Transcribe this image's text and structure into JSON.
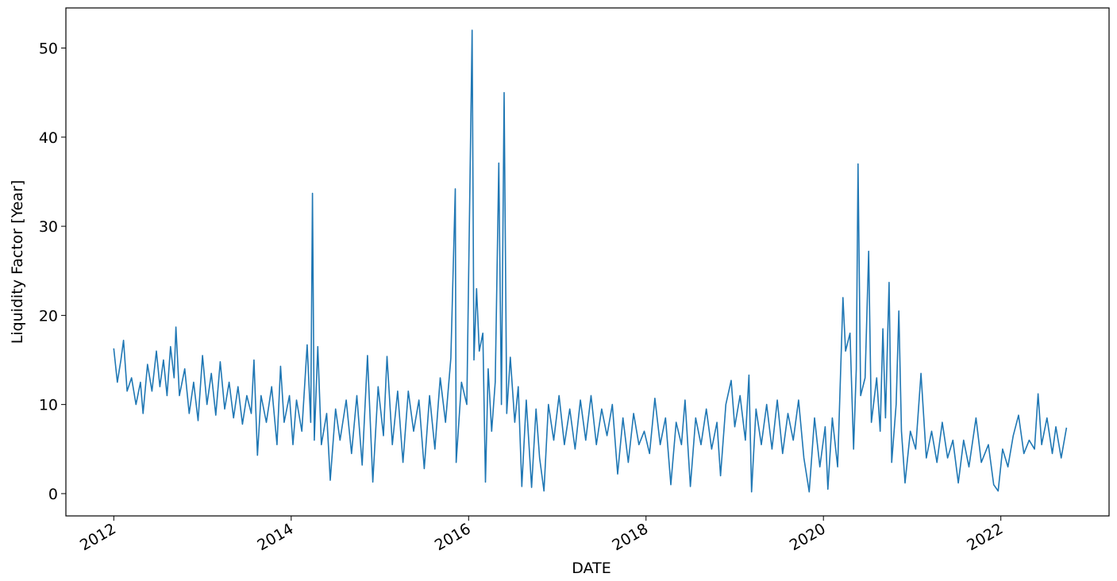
{
  "chart_data": {
    "type": "line",
    "x_label": "DATE",
    "y_label": "Liquidity Factor [Year]",
    "xlim": [
      2011.46,
      2023.22
    ],
    "xticks": [
      2012,
      2014,
      2016,
      2018,
      2020,
      2022
    ],
    "ylim": [
      -2.5,
      54.5
    ],
    "yticks": [
      0,
      10,
      20,
      30,
      40,
      50
    ],
    "grid": false,
    "series": [
      {
        "color": "#1f77b4",
        "x": [
          2012.0,
          2012.04,
          2012.08,
          2012.11,
          2012.15,
          2012.2,
          2012.25,
          2012.3,
          2012.33,
          2012.38,
          2012.43,
          2012.48,
          2012.52,
          2012.56,
          2012.6,
          2012.64,
          2012.68,
          2012.7,
          2012.74,
          2012.8,
          2012.85,
          2012.9,
          2012.95,
          2013.0,
          2013.05,
          2013.1,
          2013.15,
          2013.2,
          2013.25,
          2013.3,
          2013.35,
          2013.4,
          2013.45,
          2013.5,
          2013.55,
          2013.58,
          2013.62,
          2013.66,
          2013.72,
          2013.78,
          2013.84,
          2013.88,
          2013.92,
          2013.98,
          2014.02,
          2014.06,
          2014.12,
          2014.18,
          2014.22,
          2014.24,
          2014.26,
          2014.3,
          2014.34,
          2014.4,
          2014.44,
          2014.5,
          2014.55,
          2014.62,
          2014.68,
          2014.74,
          2014.8,
          2014.86,
          2014.92,
          2014.98,
          2015.04,
          2015.08,
          2015.14,
          2015.2,
          2015.26,
          2015.32,
          2015.38,
          2015.44,
          2015.5,
          2015.56,
          2015.62,
          2015.68,
          2015.74,
          2015.8,
          2015.85,
          2015.86,
          2015.92,
          2015.98,
          2016.04,
          2016.06,
          2016.09,
          2016.12,
          2016.16,
          2016.19,
          2016.22,
          2016.26,
          2016.3,
          2016.34,
          2016.37,
          2016.4,
          2016.43,
          2016.47,
          2016.52,
          2016.56,
          2016.6,
          2016.65,
          2016.71,
          2016.76,
          2016.8,
          2016.85,
          2016.9,
          2016.96,
          2017.02,
          2017.08,
          2017.14,
          2017.2,
          2017.26,
          2017.32,
          2017.38,
          2017.44,
          2017.5,
          2017.56,
          2017.62,
          2017.68,
          2017.74,
          2017.8,
          2017.86,
          2017.92,
          2017.98,
          2018.04,
          2018.1,
          2018.16,
          2018.22,
          2018.28,
          2018.34,
          2018.4,
          2018.44,
          2018.5,
          2018.56,
          2018.62,
          2018.68,
          2018.74,
          2018.8,
          2018.84,
          2018.9,
          2018.96,
          2019.0,
          2019.06,
          2019.12,
          2019.16,
          2019.19,
          2019.24,
          2019.3,
          2019.36,
          2019.42,
          2019.48,
          2019.54,
          2019.6,
          2019.66,
          2019.72,
          2019.78,
          2019.84,
          2019.9,
          2019.96,
          2020.02,
          2020.05,
          2020.1,
          2020.16,
          2020.22,
          2020.25,
          2020.3,
          2020.34,
          2020.37,
          2020.39,
          2020.42,
          2020.47,
          2020.51,
          2020.54,
          2020.6,
          2020.64,
          2020.67,
          2020.7,
          2020.74,
          2020.77,
          2020.82,
          2020.85,
          2020.88,
          2020.92,
          2020.98,
          2021.04,
          2021.1,
          2021.16,
          2021.22,
          2021.28,
          2021.34,
          2021.4,
          2021.46,
          2021.52,
          2021.58,
          2021.64,
          2021.72,
          2021.78,
          2021.86,
          2021.92,
          2021.97,
          2022.02,
          2022.08,
          2022.14,
          2022.2,
          2022.26,
          2022.32,
          2022.38,
          2022.42,
          2022.46,
          2022.52,
          2022.58,
          2022.62,
          2022.68,
          2022.74
        ],
        "values": [
          16.3,
          12.5,
          15,
          17.2,
          11.5,
          13,
          10,
          12.5,
          9,
          14.5,
          11.5,
          16,
          12,
          15,
          11,
          16.5,
          13,
          18.7,
          11,
          14,
          9,
          12.5,
          8.2,
          15.5,
          10,
          13.5,
          8.8,
          14.8,
          9.5,
          12.5,
          8.5,
          12,
          7.8,
          11,
          9,
          15,
          4.3,
          11,
          8,
          12,
          5.5,
          14.3,
          8,
          11,
          5.5,
          10.5,
          7,
          16.7,
          8,
          33.7,
          6,
          16.5,
          5.5,
          9,
          1.5,
          9.5,
          6,
          10.5,
          4.5,
          11,
          3.2,
          15.5,
          1.3,
          12,
          6.5,
          15.4,
          5.5,
          11.5,
          3.5,
          11.5,
          7,
          10.5,
          2.8,
          11,
          5,
          13,
          8,
          15.2,
          34.2,
          3.5,
          12.5,
          10,
          52,
          15,
          23,
          16,
          18,
          1.3,
          14,
          7,
          12.5,
          37.1,
          10,
          45,
          9,
          15.3,
          8,
          12,
          0.8,
          10.5,
          0.7,
          9.5,
          4,
          0.3,
          10,
          6,
          11,
          5.5,
          9.5,
          5,
          10.5,
          6,
          11,
          5.5,
          9.5,
          6.5,
          10,
          2.2,
          8.5,
          3.5,
          9,
          5.5,
          7,
          4.5,
          10.7,
          5.5,
          8.5,
          1,
          8,
          5.5,
          10.5,
          0.8,
          8.5,
          5.5,
          9.5,
          5,
          8,
          2,
          10,
          12.7,
          7.5,
          11,
          6,
          13.3,
          0.2,
          9.5,
          5.5,
          10,
          5,
          10.5,
          4.5,
          9,
          6,
          10.5,
          4,
          0.2,
          8.5,
          3,
          7.5,
          0.5,
          8.5,
          3,
          22,
          16,
          18,
          5,
          14,
          37,
          11,
          13,
          27.2,
          8,
          13,
          7,
          18.5,
          8.5,
          23.7,
          3.5,
          10,
          20.5,
          7,
          1.2,
          7,
          5,
          13.5,
          4,
          7,
          3.5,
          8,
          4,
          6,
          1.2,
          6,
          3,
          8.5,
          3.5,
          5.5,
          1,
          0.3,
          5,
          3,
          6.5,
          8.8,
          4.5,
          6,
          5,
          11.2,
          5.5,
          8.5,
          4.5,
          7.5,
          4,
          7.4
        ]
      }
    ]
  }
}
